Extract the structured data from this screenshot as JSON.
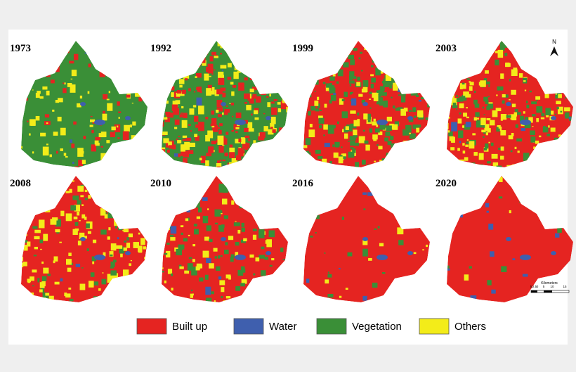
{
  "panels": [
    {
      "year": "1973"
    },
    {
      "year": "1992"
    },
    {
      "year": "1999"
    },
    {
      "year": "2003"
    },
    {
      "year": "2008"
    },
    {
      "year": "2010"
    },
    {
      "year": "2016"
    },
    {
      "year": "2020"
    }
  ],
  "legend": [
    {
      "label": "Built up",
      "color": "#e52421"
    },
    {
      "label": "Water",
      "color": "#3f5fae"
    },
    {
      "label": "Vegetation",
      "color": "#3a8f37"
    },
    {
      "label": "Others",
      "color": "#f3ec19"
    }
  ],
  "north": "N",
  "scale": {
    "title": "Kilometers",
    "ticks": [
      "5",
      "2.5",
      "0",
      "5",
      "10",
      "15"
    ]
  }
}
